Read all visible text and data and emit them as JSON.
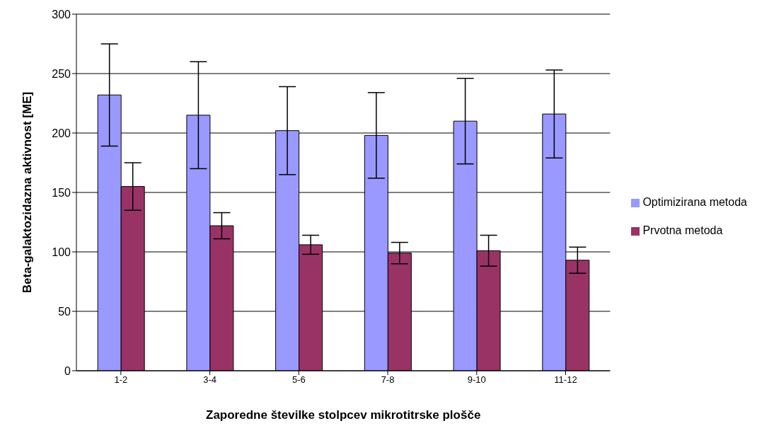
{
  "chart_data": {
    "type": "bar",
    "xlabel": "Zaporedne številke stolpcev mikrotitrske plošče",
    "ylabel": "Beta-galaktozidazna aktivnost [ME]",
    "categories": [
      "1-2",
      "3-4",
      "5-6",
      "7-8",
      "9-10",
      "11-12"
    ],
    "series": [
      {
        "name": "Optimizirana metoda",
        "color": "#9999ff",
        "values": [
          232,
          215,
          202,
          198,
          210,
          216
        ],
        "errors": [
          43,
          45,
          37,
          36,
          36,
          37
        ]
      },
      {
        "name": "Prvotna metoda",
        "color": "#993366",
        "values": [
          155,
          122,
          106,
          99,
          101,
          93
        ],
        "errors": [
          20,
          11,
          8,
          9,
          13,
          11
        ]
      }
    ],
    "ylim": [
      0,
      300
    ],
    "yticks": [
      0,
      50,
      100,
      150,
      200,
      250,
      300
    ],
    "grid": "y",
    "legend": "right"
  }
}
